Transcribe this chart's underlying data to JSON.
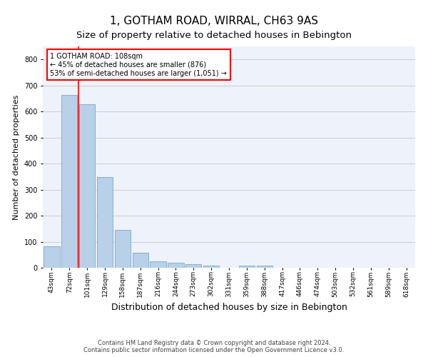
{
  "title": "1, GOTHAM ROAD, WIRRAL, CH63 9AS",
  "subtitle": "Size of property relative to detached houses in Bebington",
  "xlabel": "Distribution of detached houses by size in Bebington",
  "ylabel": "Number of detached properties",
  "categories": [
    "43sqm",
    "72sqm",
    "101sqm",
    "129sqm",
    "158sqm",
    "187sqm",
    "216sqm",
    "244sqm",
    "273sqm",
    "302sqm",
    "331sqm",
    "359sqm",
    "388sqm",
    "417sqm",
    "446sqm",
    "474sqm",
    "503sqm",
    "532sqm",
    "561sqm",
    "589sqm",
    "618sqm"
  ],
  "values": [
    83,
    663,
    628,
    347,
    146,
    58,
    25,
    19,
    15,
    8,
    0,
    8,
    8,
    0,
    0,
    0,
    0,
    0,
    0,
    0,
    0
  ],
  "bar_color": "#b8d0e8",
  "bar_edge_color": "#7aaac8",
  "property_line_x": 1.5,
  "annotation_text": "1 GOTHAM ROAD: 108sqm\n← 45% of detached houses are smaller (876)\n53% of semi-detached houses are larger (1,051) →",
  "annotation_box_color": "white",
  "annotation_box_edgecolor": "red",
  "ylim": [
    0,
    850
  ],
  "yticks": [
    0,
    100,
    200,
    300,
    400,
    500,
    600,
    700,
    800
  ],
  "grid_color": "#cccccc",
  "background_color": "#eef2fa",
  "footer": "Contains HM Land Registry data © Crown copyright and database right 2024.\nContains public sector information licensed under the Open Government Licence v3.0.",
  "title_fontsize": 11,
  "subtitle_fontsize": 9.5,
  "ylabel_fontsize": 8,
  "xlabel_fontsize": 9,
  "annotation_fontsize": 7,
  "tick_fontsize": 6.5
}
